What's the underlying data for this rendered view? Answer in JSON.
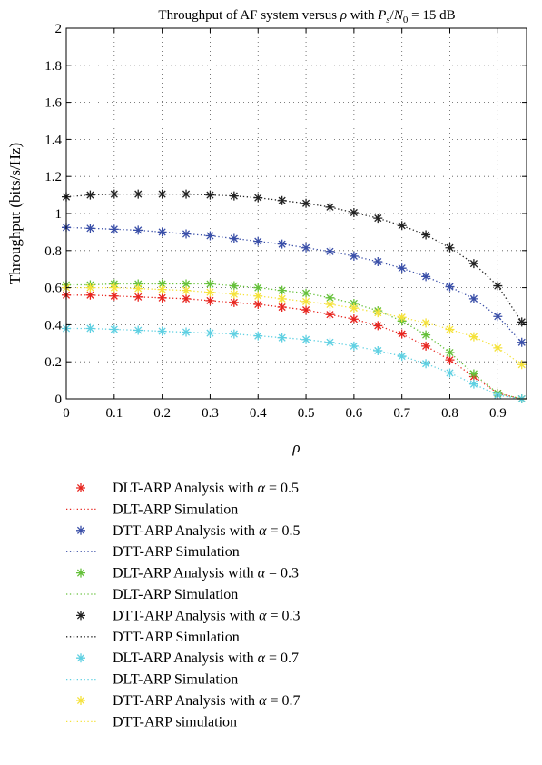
{
  "chart_data": {
    "type": "line",
    "title_main": "Throughput of AF system versus ",
    "title_rho": "ρ",
    "title_with": " with ",
    "title_P": "P",
    "title_s": "s",
    "title_slash": "/",
    "title_N": "N",
    "title_0": "0",
    "title_val": " = 15 dB",
    "xlabel": "ρ",
    "ylabel": "Throughput (bits/s/Hz)",
    "xlim": [
      0,
      0.96
    ],
    "ylim": [
      0,
      2
    ],
    "xticks": [
      "0",
      "0.1",
      "0.2",
      "0.3",
      "0.4",
      "0.5",
      "0.6",
      "0.7",
      "0.8",
      "0.9"
    ],
    "xtick_values": [
      0,
      0.1,
      0.2,
      0.3,
      0.4,
      0.5,
      0.6,
      0.7,
      0.8,
      0.9
    ],
    "yticks": [
      "0",
      "0.2",
      "0.4",
      "0.6",
      "0.8",
      "1",
      "1.2",
      "1.4",
      "1.6",
      "1.8",
      "2"
    ],
    "ytick_values": [
      0,
      0.2,
      0.4,
      0.6,
      0.8,
      1,
      1.2,
      1.4,
      1.6,
      1.8,
      2
    ],
    "grid": true,
    "legend_position": "below",
    "x": [
      0,
      0.05,
      0.1,
      0.15,
      0.2,
      0.25,
      0.3,
      0.35,
      0.4,
      0.45,
      0.5,
      0.55,
      0.6,
      0.65,
      0.7,
      0.75,
      0.8,
      0.85,
      0.9,
      0.95
    ],
    "series": [
      {
        "color": "#e8251f",
        "values": [
          0.56,
          0.56,
          0.555,
          0.55,
          0.545,
          0.54,
          0.53,
          0.52,
          0.51,
          0.495,
          0.48,
          0.455,
          0.43,
          0.395,
          0.35,
          0.285,
          0.21,
          0.12,
          0.03,
          0.0
        ]
      },
      {
        "color": "#3a4fa8",
        "values": [
          0.925,
          0.92,
          0.915,
          0.91,
          0.9,
          0.89,
          0.88,
          0.865,
          0.85,
          0.835,
          0.815,
          0.795,
          0.77,
          0.74,
          0.705,
          0.66,
          0.605,
          0.54,
          0.445,
          0.305
        ]
      },
      {
        "color": "#65c13a",
        "values": [
          0.615,
          0.615,
          0.62,
          0.62,
          0.62,
          0.62,
          0.62,
          0.61,
          0.6,
          0.585,
          0.57,
          0.545,
          0.515,
          0.475,
          0.42,
          0.345,
          0.25,
          0.135,
          0.03,
          0.0
        ]
      },
      {
        "color": "#222222",
        "values": [
          1.09,
          1.1,
          1.105,
          1.105,
          1.105,
          1.105,
          1.1,
          1.095,
          1.085,
          1.07,
          1.055,
          1.035,
          1.005,
          0.975,
          0.935,
          0.885,
          0.815,
          0.73,
          0.61,
          0.415
        ]
      },
      {
        "color": "#5fd0e2",
        "values": [
          0.38,
          0.38,
          0.375,
          0.37,
          0.365,
          0.36,
          0.355,
          0.35,
          0.34,
          0.33,
          0.32,
          0.305,
          0.285,
          0.26,
          0.23,
          0.19,
          0.14,
          0.08,
          0.02,
          0.0
        ]
      },
      {
        "color": "#f5e23a",
        "values": [
          0.6,
          0.6,
          0.6,
          0.595,
          0.59,
          0.585,
          0.575,
          0.565,
          0.555,
          0.54,
          0.525,
          0.51,
          0.49,
          0.465,
          0.44,
          0.41,
          0.375,
          0.335,
          0.275,
          0.185
        ]
      }
    ],
    "legend": [
      {
        "label": "DLT-ARP Analysis with α = 0.5",
        "color": "#e8251f",
        "kind": "marker"
      },
      {
        "label": "DLT-ARP Simulation",
        "color": "#e8251f",
        "kind": "line"
      },
      {
        "label": "DTT-ARP Analysis with α = 0.5",
        "color": "#3a4fa8",
        "kind": "marker"
      },
      {
        "label": "DTT-ARP Simulation",
        "color": "#3a4fa8",
        "kind": "line"
      },
      {
        "label": "DLT-ARP Analysis with α = 0.3",
        "color": "#65c13a",
        "kind": "marker"
      },
      {
        "label": "DLT-ARP Simulation",
        "color": "#65c13a",
        "kind": "line"
      },
      {
        "label": "DTT-ARP Analysis with α = 0.3",
        "color": "#222222",
        "kind": "marker"
      },
      {
        "label": "DTT-ARP Simulation",
        "color": "#222222",
        "kind": "line"
      },
      {
        "label": "DLT-ARP Analysis with α = 0.7",
        "color": "#5fd0e2",
        "kind": "marker"
      },
      {
        "label": "DLT-ARP Simulation",
        "color": "#5fd0e2",
        "kind": "line"
      },
      {
        "label": "DTT-ARP Analysis with α = 0.7",
        "color": "#f5e23a",
        "kind": "marker"
      },
      {
        "label": "DTT-ARP simulation",
        "color": "#f5e23a",
        "kind": "line"
      }
    ]
  }
}
